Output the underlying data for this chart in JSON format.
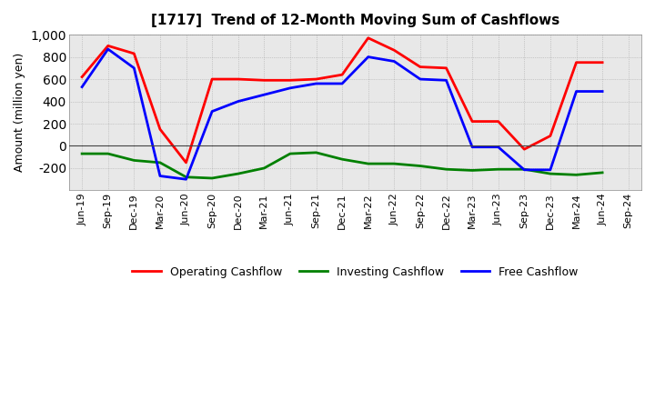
{
  "title": "[1717]  Trend of 12-Month Moving Sum of Cashflows",
  "ylabel": "Amount (million yen)",
  "x_labels": [
    "Jun-19",
    "Sep-19",
    "Dec-19",
    "Mar-20",
    "Jun-20",
    "Sep-20",
    "Dec-20",
    "Mar-21",
    "Jun-21",
    "Sep-21",
    "Dec-21",
    "Mar-22",
    "Jun-22",
    "Sep-22",
    "Dec-22",
    "Mar-23",
    "Jun-23",
    "Sep-23",
    "Dec-23",
    "Mar-24",
    "Jun-24",
    "Sep-24"
  ],
  "operating": [
    620,
    900,
    830,
    150,
    -150,
    600,
    600,
    590,
    590,
    600,
    640,
    970,
    860,
    710,
    700,
    220,
    220,
    -30,
    90,
    750,
    750,
    null
  ],
  "investing": [
    -70,
    -70,
    -130,
    -150,
    -280,
    -290,
    -250,
    -200,
    -70,
    -60,
    -120,
    -160,
    -160,
    -180,
    -210,
    -220,
    -210,
    -210,
    -250,
    -260,
    -240,
    null
  ],
  "free": [
    530,
    870,
    700,
    -270,
    -300,
    310,
    400,
    460,
    520,
    560,
    560,
    800,
    760,
    600,
    590,
    -10,
    -10,
    -215,
    -215,
    490,
    490,
    null
  ],
  "ylim": [
    -400,
    1000
  ],
  "yticks": [
    -200,
    0,
    200,
    400,
    600,
    800,
    1000
  ],
  "operating_color": "#ff0000",
  "investing_color": "#008000",
  "free_color": "#0000ff",
  "bg_color": "#ffffff",
  "plot_bg_color": "#e8e8e8",
  "grid_color": "#999999",
  "linewidth": 2.0,
  "title_fontsize": 11,
  "ylabel_fontsize": 9,
  "tick_fontsize": 8,
  "legend_fontsize": 9
}
